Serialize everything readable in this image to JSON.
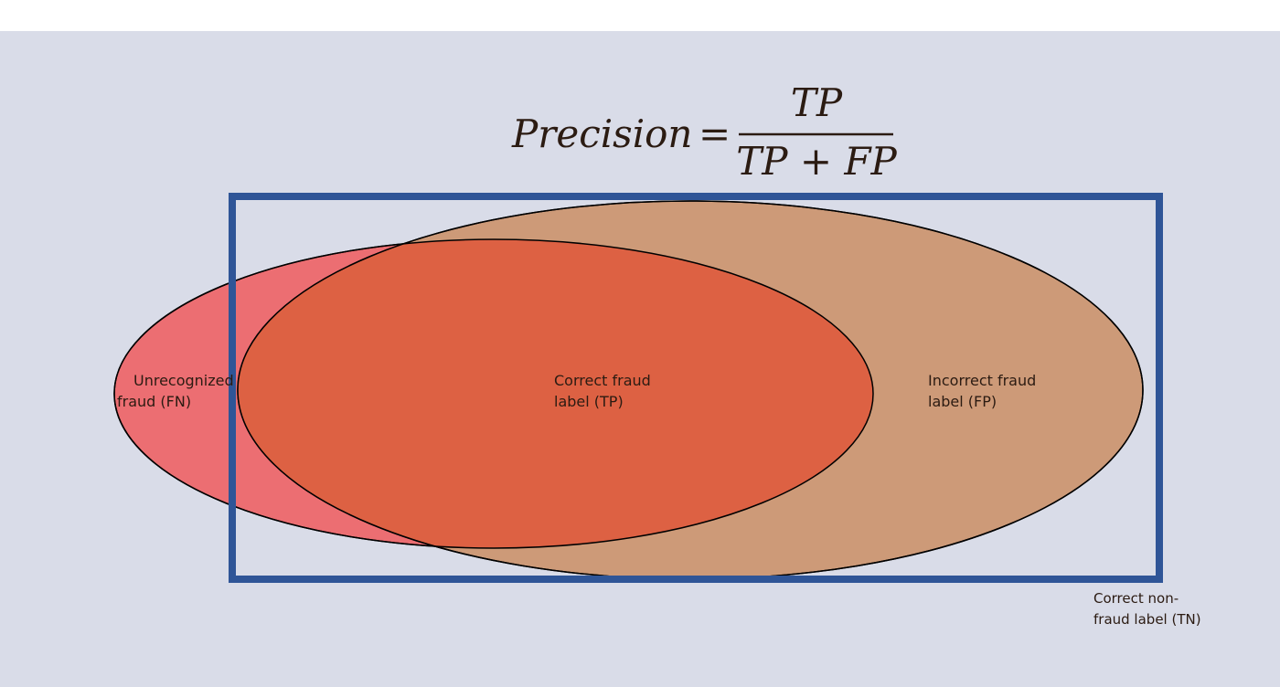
{
  "colors": {
    "background": "#d9dce8",
    "top_strip": "#ffffff",
    "actual_fraud_fill": "#ec6e72",
    "predicted_fraud_fill": "#cd9a78",
    "true_positive_fill": "#dd6143",
    "frame_stroke": "#2f5597",
    "outline_stroke": "#000000",
    "text": "#2b1b12"
  },
  "formula": {
    "lhs": "Precision",
    "equals": "=",
    "numerator": "TP",
    "denominator": "TP + FP"
  },
  "labels": {
    "fn_line1": "Unrecognized",
    "fn_line2": "fraud (FN)",
    "tp_line1": "Correct fraud",
    "tp_line2": "label (TP)",
    "fp_line1": "Incorrect fraud",
    "fp_line2": "label (FP)",
    "tn_line1": "Correct non-",
    "tn_line2": "fraud label (TN)"
  }
}
